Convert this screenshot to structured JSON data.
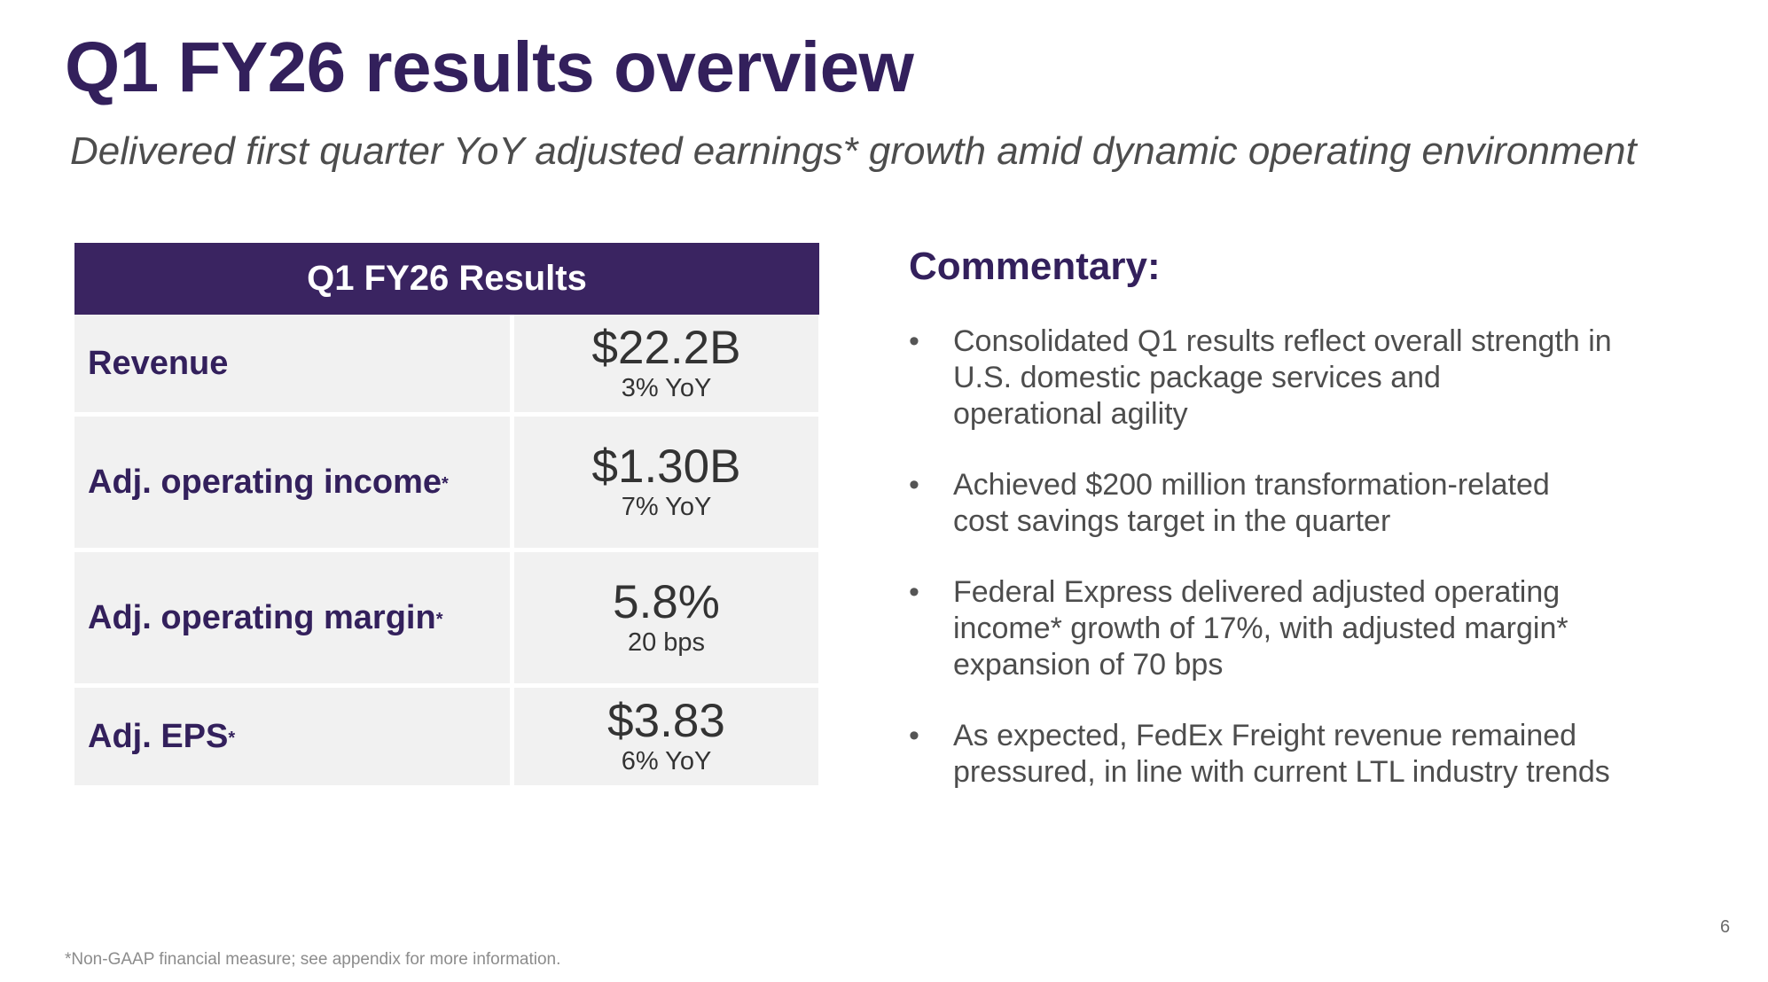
{
  "slide": {
    "title": "Q1 FY26 results overview",
    "subtitle": "Delivered first quarter YoY adjusted earnings* growth amid dynamic operating environment",
    "page_number": "6",
    "footnote": "*Non-GAAP financial measure; see appendix for more information."
  },
  "table": {
    "header": "Q1 FY26 Results",
    "rows": [
      {
        "metric": "Revenue",
        "marker": "",
        "value": "$22.2B",
        "change": "3% YoY"
      },
      {
        "metric": "Adj. operating income",
        "marker": "*",
        "value": "$1.30B",
        "change": "7% YoY"
      },
      {
        "metric": "Adj. operating margin",
        "marker": "*",
        "value": "5.8%",
        "change": "20 bps"
      },
      {
        "metric": "Adj. EPS",
        "marker": "*",
        "value": "$3.83",
        "change": "6% YoY"
      }
    ]
  },
  "commentary": {
    "title": "Commentary:",
    "bullet_symbol": "•",
    "items": [
      {
        "lines": [
          "Consolidated Q1 results reflect overall strength in",
          "U.S. domestic package services and",
          "operational agility"
        ]
      },
      {
        "lines": [
          "Achieved $200 million transformation-related",
          "cost savings target in the quarter"
        ]
      },
      {
        "lines": [
          "Federal Express delivered adjusted operating",
          "income* growth of 17%, with adjusted margin*",
          "expansion of 70 bps"
        ]
      },
      {
        "lines": [
          "As expected, FedEx Freight revenue remained",
          "pressured, in line with current LTL industry trends"
        ]
      }
    ]
  },
  "colors": {
    "brand_purple": "#33205c",
    "table_header_bg": "#3a2461",
    "cell_bg": "#f1f1f1",
    "body_text": "#4d4d4d"
  }
}
